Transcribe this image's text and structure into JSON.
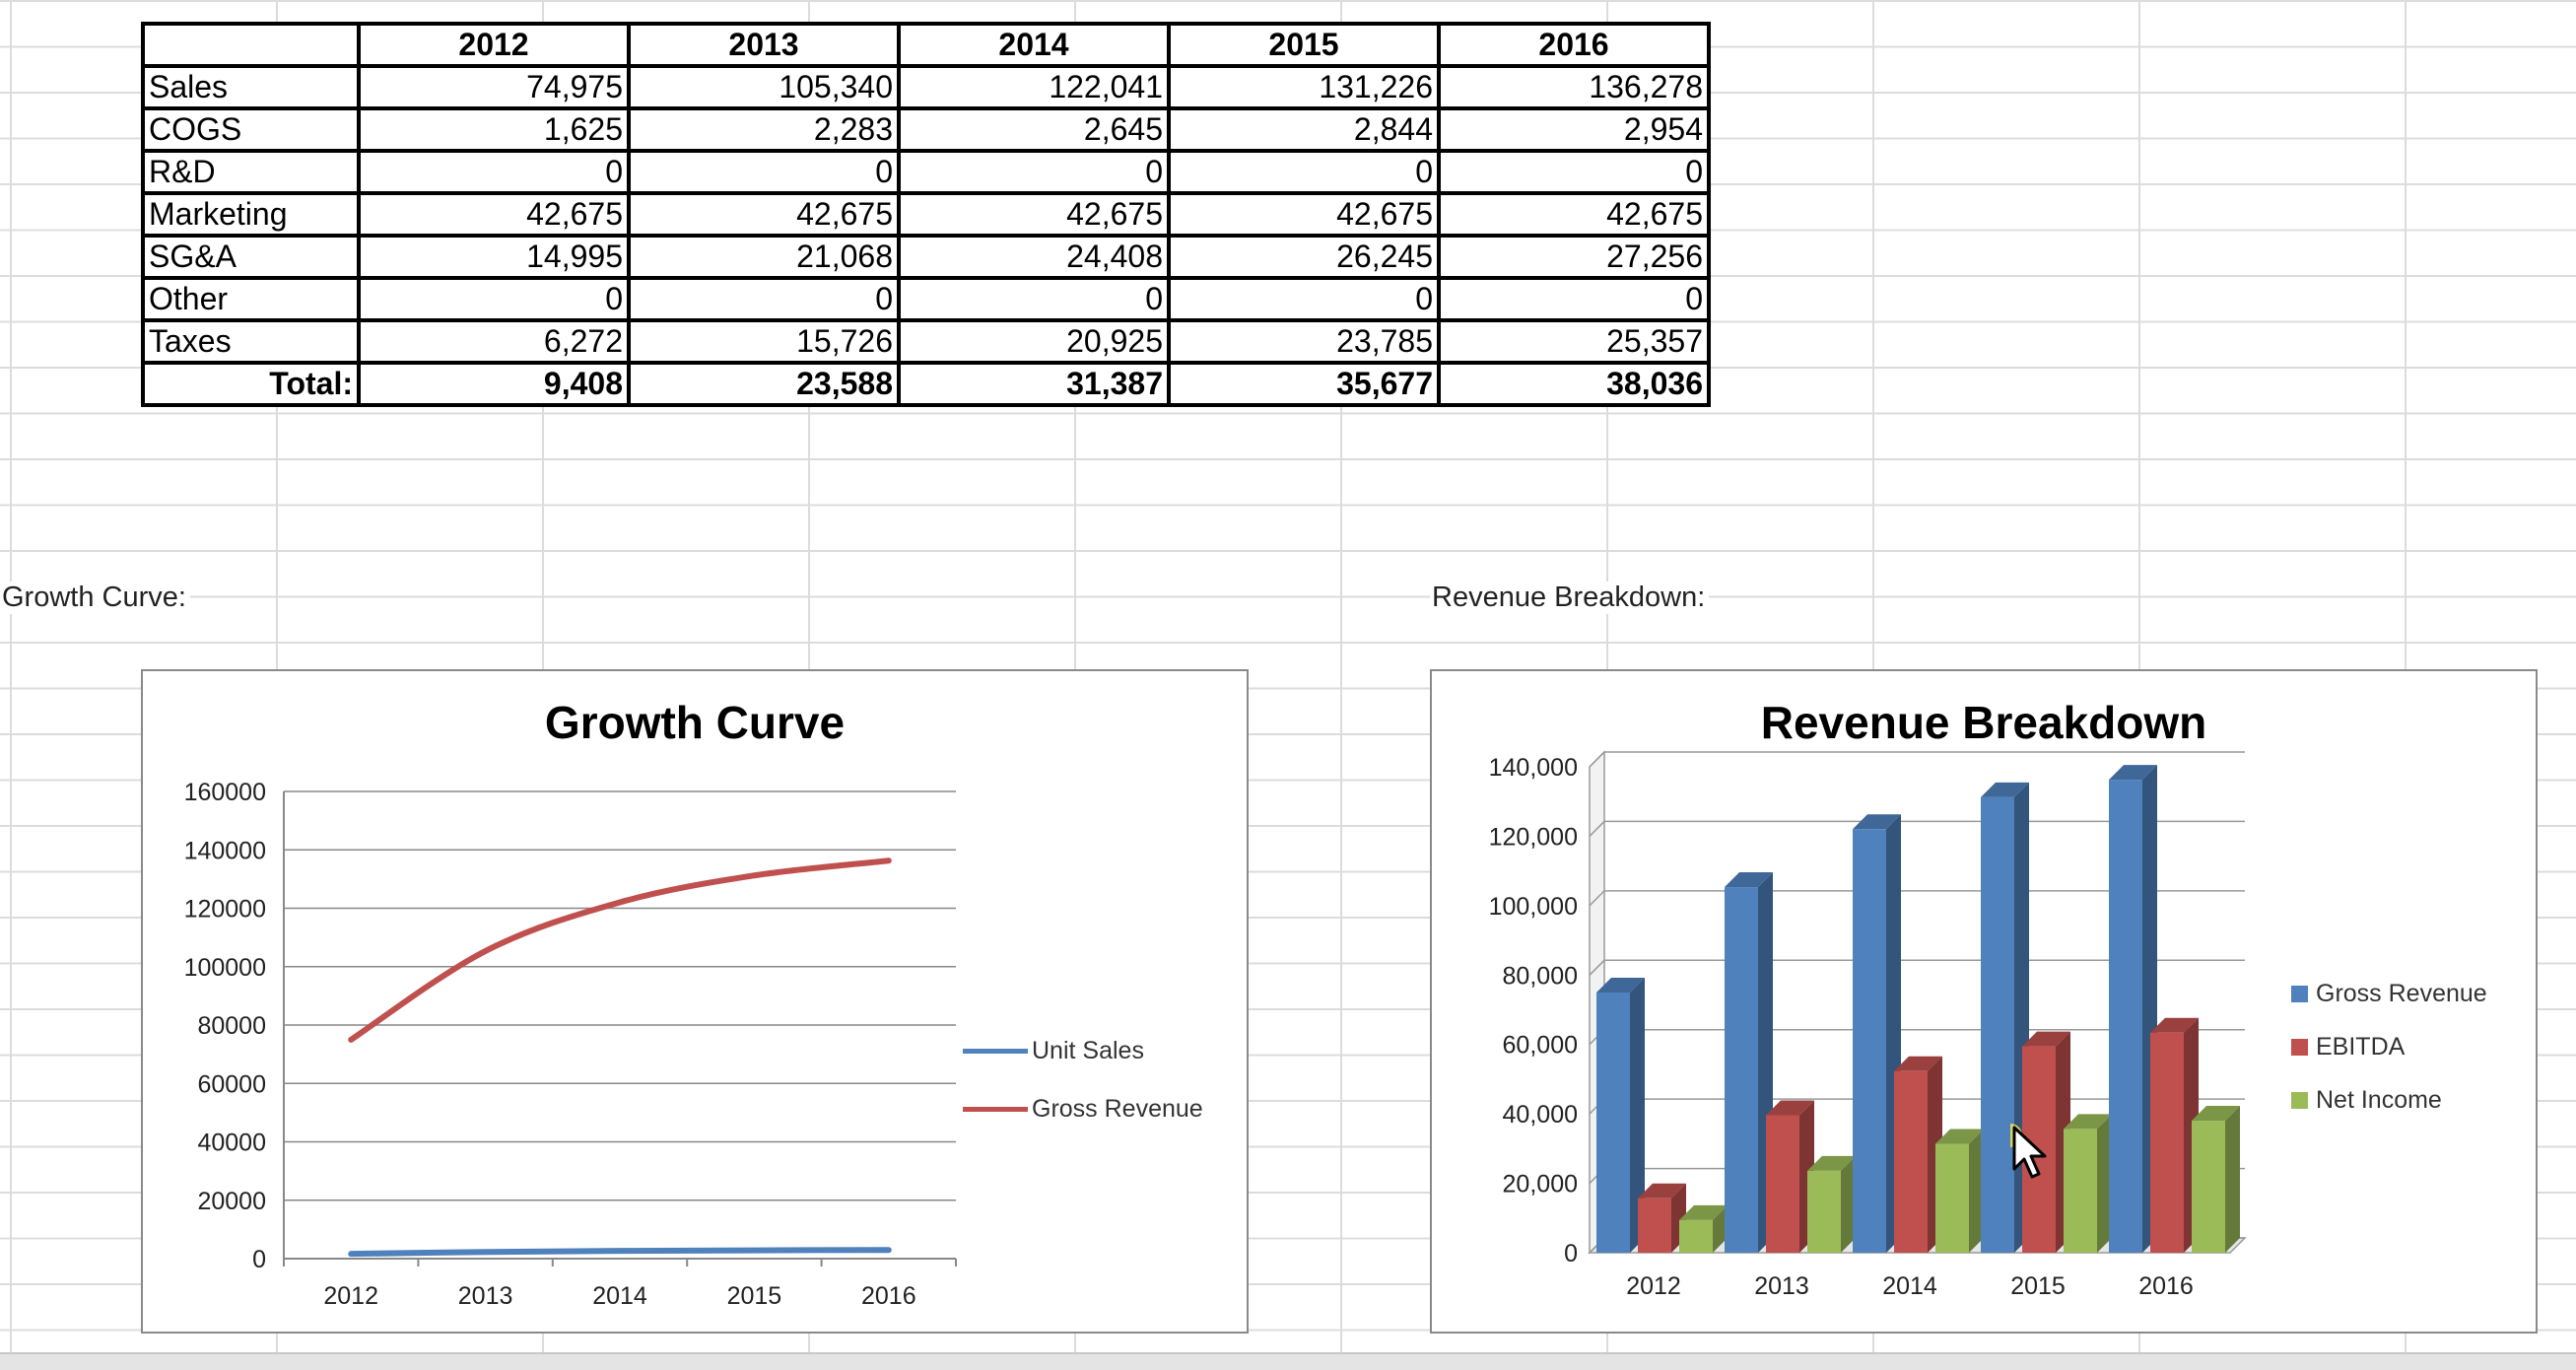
{
  "table": {
    "headers": [
      "",
      "2012",
      "2013",
      "2014",
      "2015",
      "2016"
    ],
    "rows": [
      {
        "label": "Sales",
        "values": [
          "74,975",
          "105,340",
          "122,041",
          "131,226",
          "136,278"
        ]
      },
      {
        "label": "COGS",
        "values": [
          "1,625",
          "2,283",
          "2,645",
          "2,844",
          "2,954"
        ]
      },
      {
        "label": "R&D",
        "values": [
          "0",
          "0",
          "0",
          "0",
          "0"
        ]
      },
      {
        "label": "Marketing",
        "values": [
          "42,675",
          "42,675",
          "42,675",
          "42,675",
          "42,675"
        ]
      },
      {
        "label": "SG&A",
        "values": [
          "14,995",
          "21,068",
          "24,408",
          "26,245",
          "27,256"
        ]
      },
      {
        "label": "Other",
        "values": [
          "0",
          "0",
          "0",
          "0",
          "0"
        ]
      },
      {
        "label": "Taxes",
        "values": [
          "6,272",
          "15,726",
          "20,925",
          "23,785",
          "25,357"
        ]
      },
      {
        "label": "Total:",
        "values": [
          "9,408",
          "23,588",
          "31,387",
          "35,677",
          "38,036"
        ],
        "bold": true
      }
    ]
  },
  "labels": {
    "growth_section": "Growth Curve:",
    "revenue_section": "Revenue Breakdown:"
  },
  "chart_data": [
    {
      "type": "line",
      "title": "Growth Curve",
      "categories": [
        "2012",
        "2013",
        "2014",
        "2015",
        "2016"
      ],
      "series": [
        {
          "name": "Unit Sales",
          "color": "#4f81bd",
          "values": [
            1625,
            2283,
            2645,
            2844,
            2954
          ]
        },
        {
          "name": "Gross Revenue",
          "color": "#c0504d",
          "values": [
            74975,
            105340,
            122041,
            131226,
            136278
          ]
        }
      ],
      "ylim": [
        0,
        160000
      ],
      "yticks": [
        "0",
        "20000",
        "40000",
        "60000",
        "80000",
        "100000",
        "120000",
        "140000",
        "160000"
      ],
      "grid": true,
      "legend": "right"
    },
    {
      "type": "bar",
      "title": "Revenue Breakdown",
      "style": "3d-clustered-column",
      "categories": [
        "2012",
        "2013",
        "2014",
        "2015",
        "2016"
      ],
      "series": [
        {
          "name": "Gross Revenue",
          "color": "#4f81bd",
          "values": [
            74975,
            105340,
            122041,
            131226,
            136278
          ]
        },
        {
          "name": "EBITDA",
          "color": "#c0504d",
          "values": [
            15680,
            39631,
            52312,
            59462,
            63393
          ]
        },
        {
          "name": "Net Income",
          "color": "#9bbb59",
          "values": [
            9408,
            23588,
            31387,
            35677,
            38036
          ]
        }
      ],
      "ylim": [
        0,
        140000
      ],
      "yticks": [
        "0",
        "20,000",
        "40,000",
        "60,000",
        "80,000",
        "100,000",
        "120,000",
        "140,000"
      ],
      "grid": true,
      "legend": "right"
    }
  ]
}
